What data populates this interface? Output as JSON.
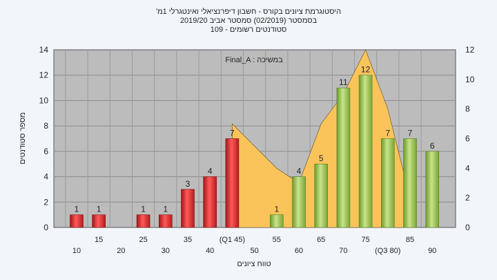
{
  "chart_data": {
    "type": "bar",
    "title_lines": [
      "'היסטוגרמת ציונים בקורס - חשבון דיפרנציאלי ואינטגרלי 1מ",
      "בסמסטר  (02/2019)  סמסטר אביב 2019/20",
      "סטודנטים רשומים - 109"
    ],
    "annotation": "Final_A : במשיכה",
    "xlabel": "טווח ציונים",
    "ylabel": "מספר סטודנטים",
    "ylim": [
      0,
      14
    ],
    "y_ticks": [
      "0",
      "2",
      "4",
      "6",
      "8",
      "10",
      "12",
      "14"
    ],
    "y2lim": [
      0,
      12
    ],
    "y2_ticks": [
      "0",
      "2",
      "4",
      "6",
      "8",
      "10",
      "12"
    ],
    "x_ticks_upper": [
      "15",
      "25",
      "35",
      "(Q1 45)",
      "55",
      "65",
      "75",
      "85"
    ],
    "x_ticks_lower": [
      "10",
      "20",
      "30",
      "40",
      "50",
      "60",
      "70",
      "(Q3 80)",
      "90"
    ],
    "grid": true,
    "colors": {
      "low_bar": "#d42a2a",
      "high_bar": "#8cbb45",
      "area": "#fbc45a",
      "plot_bg": "#bcbcbc"
    },
    "bars": [
      {
        "x": 10,
        "value": 1,
        "label": "1",
        "group": "low"
      },
      {
        "x": 15,
        "value": 1,
        "label": "1",
        "group": "low"
      },
      {
        "x": 20,
        "value": 0,
        "label": "",
        "group": "low"
      },
      {
        "x": 25,
        "value": 1,
        "label": "1",
        "group": "low"
      },
      {
        "x": 30,
        "value": 1,
        "label": "1",
        "group": "low"
      },
      {
        "x": 35,
        "value": 3,
        "label": "3",
        "group": "low"
      },
      {
        "x": 40,
        "value": 4,
        "label": "4",
        "group": "low"
      },
      {
        "x": 45,
        "value": 7,
        "label": "7",
        "group": "low"
      },
      {
        "x": 50,
        "value": 0,
        "label": "",
        "group": "high"
      },
      {
        "x": 55,
        "value": 1,
        "label": "1",
        "group": "high"
      },
      {
        "x": 60,
        "value": 4,
        "label": "4",
        "group": "high"
      },
      {
        "x": 65,
        "value": 5,
        "label": "5",
        "group": "high"
      },
      {
        "x": 70,
        "value": 11,
        "label": "11",
        "group": "high"
      },
      {
        "x": 75,
        "value": 12,
        "label": "12",
        "group": "high"
      },
      {
        "x": 80,
        "value": 7,
        "label": "7",
        "group": "high"
      },
      {
        "x": 85,
        "value": 7,
        "label": "7",
        "group": "high"
      },
      {
        "x": 90,
        "value": 6,
        "label": "6",
        "group": "high"
      }
    ],
    "area_series": {
      "x": [
        45,
        55,
        60,
        65,
        70,
        75,
        80,
        85
      ],
      "values": [
        7,
        4,
        3,
        7,
        9,
        12,
        8,
        2
      ]
    }
  }
}
